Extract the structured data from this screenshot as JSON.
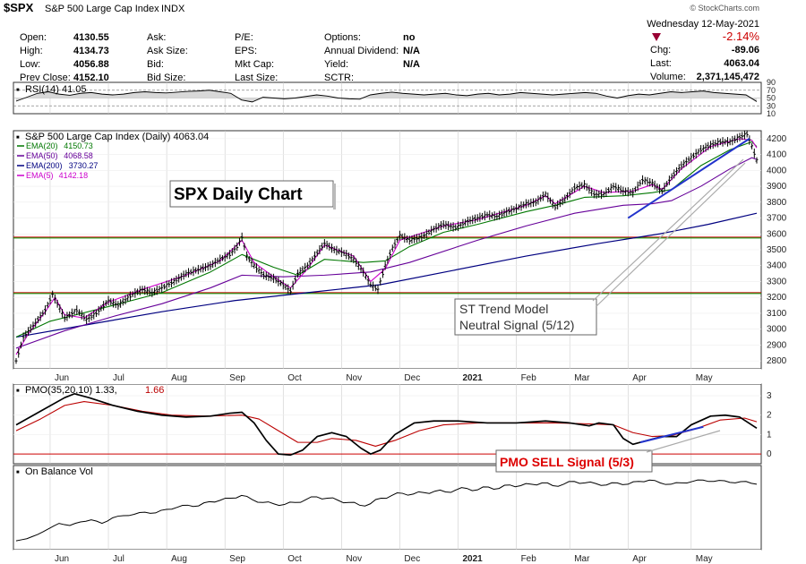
{
  "header": {
    "symbol": "$SPX",
    "name": "S&P 500 Large Cap Index",
    "exchange": "INDX",
    "date": "Wednesday  12-May-2021",
    "change_pct": "-2.14%",
    "quote": [
      {
        "label": "Open:",
        "value": "4130.55"
      },
      {
        "label": "High:",
        "value": "4134.73"
      },
      {
        "label": "Low:",
        "value": "4056.88"
      },
      {
        "label": "Prev Close:",
        "value": "4152.10"
      }
    ],
    "quote2": [
      {
        "label": "Ask:",
        "value": ""
      },
      {
        "label": "Ask Size:",
        "value": ""
      },
      {
        "label": "Bid:",
        "value": ""
      },
      {
        "label": "Bid Size:",
        "value": ""
      }
    ],
    "quote3": [
      {
        "label": "P/E:",
        "value": ""
      },
      {
        "label": "EPS:",
        "value": ""
      },
      {
        "label": "Mkt Cap:",
        "value": ""
      },
      {
        "label": "Last Size:",
        "value": ""
      }
    ],
    "quote4": [
      {
        "label": "Options:",
        "value": "no"
      },
      {
        "label": "Annual Dividend:",
        "value": "N/A"
      },
      {
        "label": "Yield:",
        "value": "N/A"
      },
      {
        "label": "SCTR:",
        "value": ""
      }
    ],
    "quote5": [
      {
        "label": "Chg:",
        "value": "-89.06"
      },
      {
        "label": "Last:",
        "value": "4063.04"
      },
      {
        "label": "Volume:",
        "value": "2,371,145,472"
      }
    ],
    "watermark": "© StockCharts.com"
  },
  "colors": {
    "price": "#000000",
    "ema20": "#007700",
    "ema50": "#660099",
    "ema200": "#000080",
    "ema5": "#cc00cc",
    "pmo_signal": "#bb0000",
    "hline_red": "#cc0000",
    "hline_green": "#009900",
    "trend": "#2233cc",
    "annotation_red": "#dd0000",
    "grid": "#cccccc"
  },
  "chart_data": [
    {
      "type": "line",
      "panel": "RSI",
      "title": "RSI(14) 41.05",
      "ylim": [
        10,
        90
      ],
      "yticks": [
        10,
        30,
        50,
        70,
        90
      ],
      "guide_lines": [
        30,
        70
      ],
      "values": [
        42,
        52,
        62,
        66,
        60,
        57,
        62,
        64,
        60,
        58,
        60,
        64,
        66,
        64,
        63,
        65,
        67,
        68,
        70,
        66,
        62,
        45,
        40,
        52,
        50,
        48,
        50,
        54,
        58,
        55,
        50,
        48,
        47,
        58,
        62,
        65,
        62,
        60,
        58,
        60,
        62,
        58,
        56,
        60,
        62,
        58,
        60,
        64,
        62,
        60,
        58,
        60,
        62,
        64,
        62,
        55,
        50,
        56,
        60,
        58,
        62,
        66,
        64,
        66,
        68,
        64,
        62,
        60,
        58,
        41
      ]
    },
    {
      "type": "line",
      "panel": "price",
      "title": "S&P 500 Large Cap Index (Daily) 4063.04",
      "ylim": [
        2750,
        4250
      ],
      "yticks": [
        2800,
        2900,
        3000,
        3100,
        3200,
        3300,
        3400,
        3500,
        3600,
        3700,
        3800,
        3900,
        4000,
        4100,
        4200
      ],
      "xlabels": [
        "Jun",
        "Jul",
        "Aug",
        "Sep",
        "Oct",
        "Nov",
        "Dec",
        "2021",
        "Feb",
        "Mar",
        "Apr",
        "May"
      ],
      "legend": [
        {
          "label": "EMA(20) 4150.73",
          "color": "#007700"
        },
        {
          "label": "EMA(50) 4068.58",
          "color": "#660099"
        },
        {
          "label": "EMA(200) 3730.27",
          "color": "#000080"
        },
        {
          "label": "EMA(5) 4142.18",
          "color": "#cc00cc"
        }
      ],
      "horizontal_lines": [
        {
          "y": 3580,
          "color": "#cc0000"
        },
        {
          "y": 3580,
          "color": "#009900"
        },
        {
          "y": 3230,
          "color": "#cc0000"
        },
        {
          "y": 3230,
          "color": "#009900"
        }
      ],
      "price": [
        [
          0,
          2800
        ],
        [
          3,
          2950
        ],
        [
          8,
          3040
        ],
        [
          12,
          3120
        ],
        [
          15,
          3220
        ],
        [
          17,
          3160
        ],
        [
          20,
          3070
        ],
        [
          25,
          3120
        ],
        [
          29,
          3060
        ],
        [
          33,
          3100
        ],
        [
          38,
          3180
        ],
        [
          42,
          3150
        ],
        [
          48,
          3220
        ],
        [
          52,
          3250
        ],
        [
          56,
          3230
        ],
        [
          60,
          3260
        ],
        [
          65,
          3300
        ],
        [
          70,
          3350
        ],
        [
          76,
          3380
        ],
        [
          80,
          3400
        ],
        [
          84,
          3440
        ],
        [
          88,
          3470
        ],
        [
          91,
          3520
        ],
        [
          93,
          3580
        ],
        [
          95,
          3460
        ],
        [
          98,
          3400
        ],
        [
          102,
          3340
        ],
        [
          106,
          3320
        ],
        [
          110,
          3280
        ],
        [
          113,
          3240
        ],
        [
          116,
          3350
        ],
        [
          120,
          3400
        ],
        [
          124,
          3480
        ],
        [
          127,
          3540
        ],
        [
          131,
          3500
        ],
        [
          135,
          3480
        ],
        [
          139,
          3440
        ],
        [
          143,
          3360
        ],
        [
          146,
          3280
        ],
        [
          149,
          3250
        ],
        [
          152,
          3400
        ],
        [
          155,
          3510
        ],
        [
          158,
          3590
        ],
        [
          162,
          3560
        ],
        [
          167,
          3580
        ],
        [
          172,
          3630
        ],
        [
          176,
          3660
        ],
        [
          181,
          3640
        ],
        [
          186,
          3680
        ],
        [
          190,
          3700
        ],
        [
          194,
          3720
        ],
        [
          198,
          3710
        ],
        [
          202,
          3740
        ],
        [
          206,
          3760
        ],
        [
          210,
          3790
        ],
        [
          214,
          3800
        ],
        [
          218,
          3850
        ],
        [
          222,
          3770
        ],
        [
          226,
          3820
        ],
        [
          230,
          3890
        ],
        [
          234,
          3910
        ],
        [
          238,
          3850
        ],
        [
          242,
          3850
        ],
        [
          246,
          3900
        ],
        [
          250,
          3870
        ],
        [
          254,
          3860
        ],
        [
          258,
          3940
        ],
        [
          262,
          3920
        ],
        [
          266,
          3870
        ],
        [
          270,
          3960
        ],
        [
          274,
          4030
        ],
        [
          278,
          4080
        ],
        [
          282,
          4130
        ],
        [
          286,
          4160
        ],
        [
          290,
          4180
        ],
        [
          294,
          4180
        ],
        [
          298,
          4210
        ],
        [
          301,
          4230
        ],
        [
          303,
          4152
        ],
        [
          305,
          4063
        ]
      ],
      "ema20": [
        [
          0,
          2950
        ],
        [
          14,
          3050
        ],
        [
          22,
          3080
        ],
        [
          40,
          3150
        ],
        [
          60,
          3230
        ],
        [
          80,
          3360
        ],
        [
          93,
          3470
        ],
        [
          106,
          3390
        ],
        [
          116,
          3340
        ],
        [
          127,
          3440
        ],
        [
          143,
          3420
        ],
        [
          152,
          3430
        ],
        [
          162,
          3520
        ],
        [
          176,
          3610
        ],
        [
          190,
          3660
        ],
        [
          210,
          3740
        ],
        [
          222,
          3780
        ],
        [
          234,
          3830
        ],
        [
          250,
          3840
        ],
        [
          262,
          3860
        ],
        [
          270,
          3880
        ],
        [
          282,
          4030
        ],
        [
          294,
          4130
        ],
        [
          303,
          4180
        ],
        [
          305,
          4150
        ]
      ],
      "ema50": [
        [
          0,
          2880
        ],
        [
          20,
          2990
        ],
        [
          40,
          3080
        ],
        [
          60,
          3160
        ],
        [
          80,
          3260
        ],
        [
          93,
          3340
        ],
        [
          110,
          3330
        ],
        [
          127,
          3340
        ],
        [
          146,
          3360
        ],
        [
          162,
          3420
        ],
        [
          190,
          3560
        ],
        [
          210,
          3650
        ],
        [
          230,
          3730
        ],
        [
          250,
          3780
        ],
        [
          262,
          3790
        ],
        [
          270,
          3810
        ],
        [
          282,
          3900
        ],
        [
          294,
          4010
        ],
        [
          303,
          4080
        ],
        [
          305,
          4068
        ]
      ],
      "ema200": [
        [
          0,
          2950
        ],
        [
          30,
          3030
        ],
        [
          60,
          3110
        ],
        [
          90,
          3180
        ],
        [
          120,
          3230
        ],
        [
          150,
          3280
        ],
        [
          180,
          3370
        ],
        [
          210,
          3460
        ],
        [
          240,
          3540
        ],
        [
          265,
          3600
        ],
        [
          285,
          3660
        ],
        [
          305,
          3730
        ]
      ],
      "ema5": [
        [
          0,
          2840
        ],
        [
          5,
          2970
        ],
        [
          12,
          3110
        ],
        [
          16,
          3200
        ],
        [
          20,
          3090
        ],
        [
          28,
          3070
        ],
        [
          38,
          3170
        ],
        [
          52,
          3250
        ],
        [
          70,
          3340
        ],
        [
          84,
          3430
        ],
        [
          93,
          3560
        ],
        [
          98,
          3420
        ],
        [
          106,
          3330
        ],
        [
          113,
          3260
        ],
        [
          120,
          3380
        ],
        [
          127,
          3530
        ],
        [
          139,
          3460
        ],
        [
          146,
          3300
        ],
        [
          152,
          3380
        ],
        [
          158,
          3560
        ],
        [
          176,
          3650
        ],
        [
          190,
          3690
        ],
        [
          210,
          3780
        ],
        [
          218,
          3840
        ],
        [
          222,
          3790
        ],
        [
          234,
          3900
        ],
        [
          242,
          3860
        ],
        [
          254,
          3870
        ],
        [
          262,
          3910
        ],
        [
          266,
          3880
        ],
        [
          274,
          4010
        ],
        [
          286,
          4150
        ],
        [
          298,
          4200
        ],
        [
          303,
          4190
        ],
        [
          305,
          4142
        ]
      ],
      "trend_lines": [
        {
          "from": [
            252,
            3700
          ],
          "to": [
            302,
            4200
          ]
        }
      ],
      "annotations": [
        {
          "text": "SPX Daily Chart"
        },
        {
          "text": "ST Trend Model"
        },
        {
          "text": "Neutral Signal (5/12)"
        }
      ]
    },
    {
      "type": "line",
      "panel": "PMO",
      "title": "PMO(35,20,10) 1.33, 1.66",
      "title_prefix": "PMO(35,20,10) 1.33,",
      "title_signal": "1.66",
      "ylim": [
        -0.5,
        3.6
      ],
      "yticks": [
        0,
        1,
        2,
        3
      ],
      "zero_line": 0,
      "pmo": [
        [
          0,
          1.5
        ],
        [
          10,
          2.2
        ],
        [
          20,
          2.9
        ],
        [
          24,
          3.1
        ],
        [
          30,
          2.9
        ],
        [
          40,
          2.5
        ],
        [
          50,
          2.2
        ],
        [
          60,
          2.0
        ],
        [
          70,
          1.9
        ],
        [
          80,
          1.95
        ],
        [
          88,
          2.1
        ],
        [
          93,
          2.15
        ],
        [
          98,
          1.6
        ],
        [
          103,
          0.7
        ],
        [
          108,
          0.0
        ],
        [
          113,
          -0.05
        ],
        [
          118,
          0.2
        ],
        [
          124,
          0.9
        ],
        [
          130,
          1.1
        ],
        [
          136,
          0.9
        ],
        [
          142,
          0.3
        ],
        [
          146,
          0.0
        ],
        [
          150,
          0.2
        ],
        [
          156,
          1.0
        ],
        [
          164,
          1.6
        ],
        [
          172,
          1.7
        ],
        [
          182,
          1.7
        ],
        [
          194,
          1.6
        ],
        [
          206,
          1.6
        ],
        [
          218,
          1.7
        ],
        [
          228,
          1.6
        ],
        [
          236,
          1.45
        ],
        [
          240,
          1.6
        ],
        [
          246,
          1.5
        ],
        [
          250,
          0.8
        ],
        [
          254,
          0.5
        ],
        [
          260,
          0.7
        ],
        [
          266,
          0.9
        ],
        [
          272,
          0.9
        ],
        [
          278,
          1.5
        ],
        [
          286,
          1.95
        ],
        [
          292,
          2.0
        ],
        [
          298,
          1.9
        ],
        [
          305,
          1.33
        ]
      ],
      "signal": [
        [
          0,
          1.2
        ],
        [
          10,
          1.8
        ],
        [
          20,
          2.5
        ],
        [
          28,
          2.7
        ],
        [
          40,
          2.5
        ],
        [
          52,
          2.2
        ],
        [
          64,
          2.0
        ],
        [
          78,
          1.95
        ],
        [
          93,
          2.0
        ],
        [
          100,
          1.8
        ],
        [
          108,
          1.2
        ],
        [
          116,
          0.6
        ],
        [
          124,
          0.6
        ],
        [
          130,
          0.8
        ],
        [
          140,
          0.7
        ],
        [
          148,
          0.4
        ],
        [
          156,
          0.7
        ],
        [
          166,
          1.2
        ],
        [
          176,
          1.5
        ],
        [
          190,
          1.6
        ],
        [
          206,
          1.6
        ],
        [
          222,
          1.6
        ],
        [
          236,
          1.55
        ],
        [
          246,
          1.5
        ],
        [
          254,
          1.1
        ],
        [
          262,
          0.9
        ],
        [
          270,
          0.95
        ],
        [
          280,
          1.3
        ],
        [
          290,
          1.75
        ],
        [
          300,
          1.85
        ],
        [
          305,
          1.66
        ]
      ],
      "trend_lines": [
        {
          "from": [
            257,
            0.6
          ],
          "to": [
            283,
            1.4
          ]
        }
      ],
      "annotations": [
        {
          "text": "PMO SELL Signal (5/3)"
        }
      ]
    },
    {
      "type": "line",
      "panel": "OBV",
      "title": "On Balance Vol",
      "values": [
        5,
        8,
        14,
        22,
        30,
        27,
        32,
        35,
        30,
        38,
        41,
        43,
        46,
        45,
        50,
        53,
        56,
        55,
        61,
        63,
        66,
        70,
        64,
        60,
        58,
        57,
        60,
        64,
        68,
        66,
        63,
        60,
        56,
        58,
        66,
        70,
        73,
        72,
        74,
        76,
        75,
        78,
        80,
        78,
        82,
        80,
        85,
        84,
        86,
        88,
        84,
        86,
        90,
        88,
        87,
        85,
        88,
        86,
        90,
        92,
        88,
        86,
        88,
        90,
        92,
        90,
        91,
        88,
        90,
        86
      ]
    }
  ]
}
